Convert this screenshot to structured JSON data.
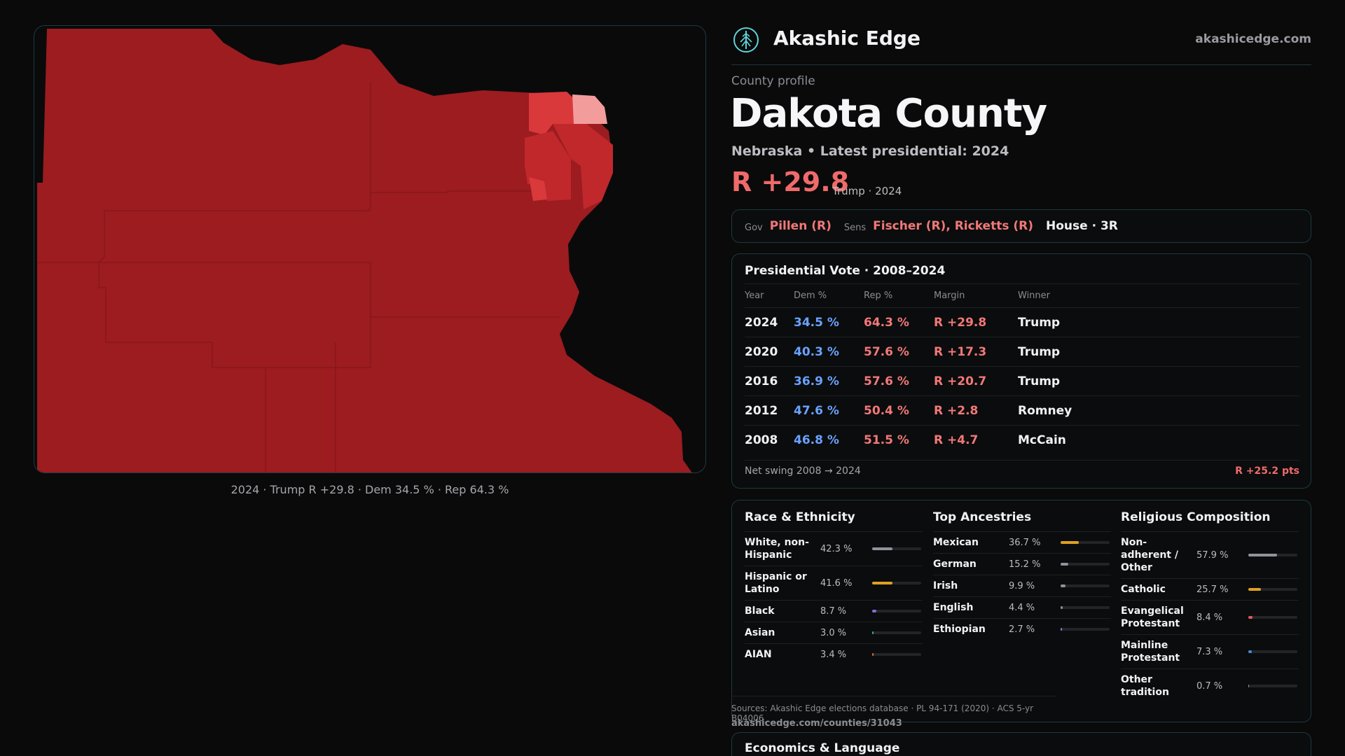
{
  "brand": {
    "name": "Akashic Edge",
    "url": "akashicedge.com",
    "logo_icon": "tree-of-life-icon",
    "accent": "#5fd3d6"
  },
  "map": {
    "caption": "2024 · Trump R +29.8 · Dem 34.5 % · Rep 64.3 %",
    "colors": {
      "strong_r": "#9c1c20",
      "mid_r": "#c0282c",
      "light_r": "#d9393b",
      "pale_r": "#f39c9c"
    }
  },
  "profile": {
    "eyebrow": "County profile",
    "title": "Dakota County",
    "subtitle": "Nebraska • Latest presidential: 2024",
    "margin": "R +29.8",
    "margin_note": "Trump · 2024"
  },
  "officials": {
    "gov_key": "Gov",
    "gov": "Pillen (R)",
    "sens_key": "Sens",
    "sens": "Fischer (R), Ricketts (R)",
    "house": "House · 3R"
  },
  "presidential": {
    "title": "Presidential Vote · 2008–2024",
    "headers": {
      "year": "Year",
      "dem": "Dem %",
      "rep": "Rep %",
      "margin": "Margin",
      "winner": "Winner"
    },
    "rows": [
      {
        "year": "2024",
        "dem": "34.5 %",
        "rep": "64.3 %",
        "margin": "R +29.8",
        "winner": "Trump"
      },
      {
        "year": "2020",
        "dem": "40.3 %",
        "rep": "57.6 %",
        "margin": "R +17.3",
        "winner": "Trump"
      },
      {
        "year": "2016",
        "dem": "36.9 %",
        "rep": "57.6 %",
        "margin": "R +20.7",
        "winner": "Trump"
      },
      {
        "year": "2012",
        "dem": "47.6 %",
        "rep": "50.4 %",
        "margin": "R +2.8",
        "winner": "Romney"
      },
      {
        "year": "2008",
        "dem": "46.8 %",
        "rep": "51.5 %",
        "margin": "R +4.7",
        "winner": "McCain"
      }
    ],
    "swing_label": "Net swing 2008 → 2024",
    "swing_value": "R +25.2 pts"
  },
  "demographics": {
    "race": {
      "title": "Race & Ethnicity",
      "items": [
        {
          "label": "White, non-Hispanic",
          "value": "42.3 %",
          "fraction": 0.423,
          "color": "#8e939c"
        },
        {
          "label": "Hispanic or Latino",
          "value": "41.6 %",
          "fraction": 0.416,
          "color": "#e0a020"
        },
        {
          "label": "Black",
          "value": "8.7 %",
          "fraction": 0.087,
          "color": "#8a6ad8"
        },
        {
          "label": "Asian",
          "value": "3.0 %",
          "fraction": 0.03,
          "color": "#2fb86a"
        },
        {
          "label": "AIAN",
          "value": "3.4 %",
          "fraction": 0.034,
          "color": "#e06a2a"
        }
      ]
    },
    "ancestry": {
      "title": "Top Ancestries",
      "items": [
        {
          "label": "Mexican",
          "value": "36.7 %",
          "fraction": 0.367,
          "color": "#e0a020"
        },
        {
          "label": "German",
          "value": "15.2 %",
          "fraction": 0.152,
          "color": "#8e939c"
        },
        {
          "label": "Irish",
          "value": "9.9 %",
          "fraction": 0.099,
          "color": "#8e939c"
        },
        {
          "label": "English",
          "value": "4.4 %",
          "fraction": 0.044,
          "color": "#8e939c"
        },
        {
          "label": "Ethiopian",
          "value": "2.7 %",
          "fraction": 0.027,
          "color": "#6a8ad8"
        }
      ]
    },
    "religion": {
      "title": "Religious Composition",
      "items": [
        {
          "label": "Non-adherent / Other",
          "value": "57.9 %",
          "fraction": 0.579,
          "color": "#8e939c"
        },
        {
          "label": "Catholic",
          "value": "25.7 %",
          "fraction": 0.257,
          "color": "#e0a020"
        },
        {
          "label": "Evangelical Protestant",
          "value": "8.4 %",
          "fraction": 0.084,
          "color": "#e05a5a"
        },
        {
          "label": "Mainline Protestant",
          "value": "7.3 %",
          "fraction": 0.073,
          "color": "#4a8ad8"
        },
        {
          "label": "Other tradition",
          "value": "0.7 %",
          "fraction": 0.007,
          "color": "#8e939c"
        }
      ]
    }
  },
  "sources": {
    "text": "Sources: Akashic Edge elections database · PL 94-171 (2020) · ACS 5-yr B04006",
    "url": "akashicedge.com/counties/31043"
  },
  "economics": {
    "title": "Economics & Language"
  }
}
